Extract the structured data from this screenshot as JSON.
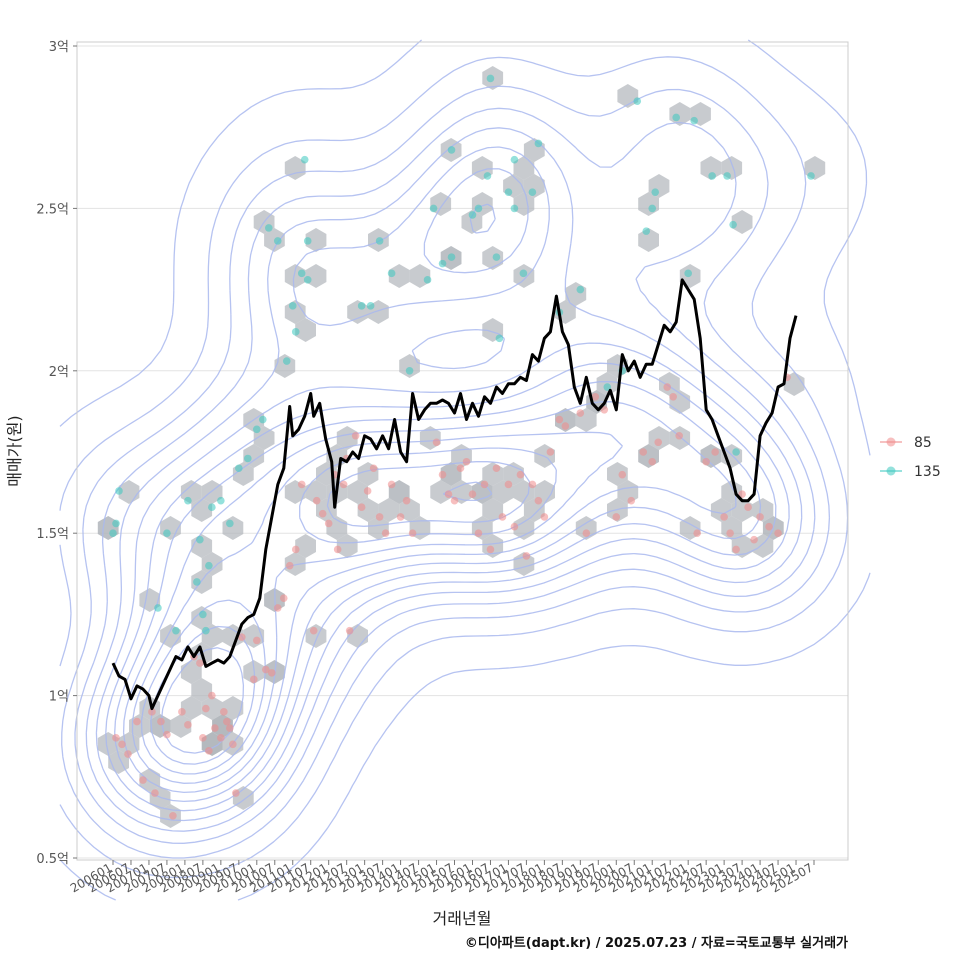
{
  "chart_data": {
    "type": "scatter",
    "xlabel": "거래년월",
    "ylabel": "매매가(원)",
    "caption": "©디아파트(dapt.kr) / 2025.07.23 / 자료=국토교통부 실거래가",
    "x_range": [
      "2006-01",
      "2025-07"
    ],
    "ylim": [
      0.5,
      3.0
    ],
    "y_unit": "억",
    "y_ticks": [
      {
        "value": 0.5,
        "label": "0.5억"
      },
      {
        "value": 1.0,
        "label": "1억"
      },
      {
        "value": 1.5,
        "label": "1.5억"
      },
      {
        "value": 2.0,
        "label": "2억"
      },
      {
        "value": 2.5,
        "label": "2.5억"
      },
      {
        "value": 3.0,
        "label": "3억"
      }
    ],
    "x_ticks": [
      "200601",
      "200607",
      "200701",
      "200707",
      "200801",
      "200807",
      "200901",
      "200907",
      "201001",
      "201007",
      "201101",
      "201107",
      "201201",
      "201207",
      "201301",
      "201307",
      "201401",
      "201407",
      "201501",
      "201507",
      "201601",
      "201607",
      "201701",
      "201707",
      "201801",
      "201807",
      "201901",
      "201907",
      "202001",
      "202007",
      "202101",
      "202107",
      "202201",
      "202207",
      "202301",
      "202307",
      "202401",
      "202407",
      "202501",
      "202507"
    ],
    "grid": true,
    "legend_position": "right",
    "colors": {
      "s85": "#f08a8a",
      "s135": "#3cc8c0",
      "trend": "#000000",
      "contour": "#a9b9ee",
      "hex": "#b0b5bb"
    },
    "series": [
      {
        "name": "85",
        "points": [
          [
            "2006-02",
            0.87
          ],
          [
            "2006-04",
            0.85
          ],
          [
            "2006-06",
            0.82
          ],
          [
            "2006-09",
            0.92
          ],
          [
            "2006-11",
            0.74
          ],
          [
            "2007-02",
            0.95
          ],
          [
            "2007-03",
            0.7
          ],
          [
            "2007-05",
            0.92
          ],
          [
            "2007-07",
            0.88
          ],
          [
            "2007-09",
            0.63
          ],
          [
            "2007-12",
            0.95
          ],
          [
            "2008-02",
            0.91
          ],
          [
            "2008-04",
            1.12
          ],
          [
            "2008-06",
            1.1
          ],
          [
            "2008-07",
            0.87
          ],
          [
            "2008-08",
            0.96
          ],
          [
            "2008-09",
            0.83
          ],
          [
            "2008-10",
            1.0
          ],
          [
            "2008-11",
            0.9
          ],
          [
            "2009-01",
            0.87
          ],
          [
            "2009-02",
            0.95
          ],
          [
            "2009-03",
            0.92
          ],
          [
            "2009-04",
            0.9
          ],
          [
            "2009-05",
            0.85
          ],
          [
            "2009-06",
            0.7
          ],
          [
            "2009-08",
            1.18
          ],
          [
            "2009-12",
            1.05
          ],
          [
            "2010-01",
            1.17
          ],
          [
            "2010-04",
            1.08
          ],
          [
            "2010-06",
            1.07
          ],
          [
            "2010-08",
            1.27
          ],
          [
            "2010-10",
            1.3
          ],
          [
            "2010-12",
            1.4
          ],
          [
            "2011-02",
            1.45
          ],
          [
            "2011-04",
            1.65
          ],
          [
            "2011-08",
            1.2
          ],
          [
            "2011-09",
            1.6
          ],
          [
            "2011-11",
            1.56
          ],
          [
            "2012-01",
            1.53
          ],
          [
            "2012-03",
            1.68
          ],
          [
            "2012-04",
            1.45
          ],
          [
            "2012-06",
            1.65
          ],
          [
            "2012-07",
            1.73
          ],
          [
            "2012-08",
            1.2
          ],
          [
            "2012-10",
            1.8
          ],
          [
            "2012-12",
            1.58
          ],
          [
            "2013-02",
            1.63
          ],
          [
            "2013-04",
            1.7
          ],
          [
            "2013-06",
            1.55
          ],
          [
            "2013-08",
            1.5
          ],
          [
            "2013-10",
            1.65
          ],
          [
            "2014-01",
            1.55
          ],
          [
            "2014-03",
            1.6
          ],
          [
            "2014-05",
            1.5
          ],
          [
            "2015-01",
            1.78
          ],
          [
            "2015-03",
            1.68
          ],
          [
            "2015-05",
            1.62
          ],
          [
            "2015-07",
            1.6
          ],
          [
            "2015-09",
            1.7
          ],
          [
            "2015-11",
            1.72
          ],
          [
            "2016-01",
            1.62
          ],
          [
            "2016-03",
            1.5
          ],
          [
            "2016-05",
            1.65
          ],
          [
            "2016-07",
            1.45
          ],
          [
            "2016-09",
            1.7
          ],
          [
            "2016-11",
            1.55
          ],
          [
            "2017-01",
            1.65
          ],
          [
            "2017-03",
            1.52
          ],
          [
            "2017-05",
            1.68
          ],
          [
            "2017-07",
            1.43
          ],
          [
            "2017-09",
            1.65
          ],
          [
            "2017-11",
            1.6
          ],
          [
            "2018-01",
            1.55
          ],
          [
            "2018-03",
            1.75
          ],
          [
            "2018-06",
            1.85
          ],
          [
            "2018-08",
            1.83
          ],
          [
            "2019-01",
            1.87
          ],
          [
            "2019-03",
            1.5
          ],
          [
            "2019-06",
            1.92
          ],
          [
            "2019-09",
            1.88
          ],
          [
            "2020-01",
            1.55
          ],
          [
            "2020-03",
            1.68
          ],
          [
            "2020-06",
            1.6
          ],
          [
            "2020-10",
            1.75
          ],
          [
            "2021-01",
            1.72
          ],
          [
            "2021-03",
            1.78
          ],
          [
            "2021-06",
            1.95
          ],
          [
            "2021-08",
            1.92
          ],
          [
            "2021-10",
            1.8
          ],
          [
            "2022-04",
            1.5
          ],
          [
            "2022-07",
            1.72
          ],
          [
            "2022-10",
            1.75
          ],
          [
            "2023-01",
            1.55
          ],
          [
            "2023-03",
            1.5
          ],
          [
            "2023-05",
            1.45
          ],
          [
            "2023-07",
            1.62
          ],
          [
            "2023-09",
            1.58
          ],
          [
            "2023-11",
            1.48
          ],
          [
            "2024-01",
            1.55
          ],
          [
            "2024-04",
            1.52
          ],
          [
            "2024-07",
            1.5
          ],
          [
            "2024-10",
            1.98
          ]
        ]
      },
      {
        "name": "135",
        "points": [
          [
            "2006-01",
            1.5
          ],
          [
            "2006-02",
            1.53
          ],
          [
            "2006-03",
            1.63
          ],
          [
            "2007-04",
            1.27
          ],
          [
            "2007-07",
            1.5
          ],
          [
            "2007-10",
            1.2
          ],
          [
            "2008-02",
            1.6
          ],
          [
            "2008-05",
            1.35
          ],
          [
            "2008-06",
            1.48
          ],
          [
            "2008-07",
            1.25
          ],
          [
            "2008-08",
            1.2
          ],
          [
            "2008-09",
            1.4
          ],
          [
            "2008-10",
            1.58
          ],
          [
            "2009-01",
            1.6
          ],
          [
            "2009-04",
            1.53
          ],
          [
            "2009-07",
            1.7
          ],
          [
            "2009-10",
            1.73
          ],
          [
            "2010-01",
            1.82
          ],
          [
            "2010-03",
            1.85
          ],
          [
            "2010-05",
            2.44
          ],
          [
            "2010-08",
            2.4
          ],
          [
            "2010-11",
            2.03
          ],
          [
            "2011-01",
            2.2
          ],
          [
            "2011-02",
            2.12
          ],
          [
            "2011-04",
            2.3
          ],
          [
            "2011-05",
            2.65
          ],
          [
            "2011-06",
            2.4
          ],
          [
            "2011-06",
            2.28
          ],
          [
            "2012-12",
            2.2
          ],
          [
            "2013-03",
            2.2
          ],
          [
            "2013-06",
            2.4
          ],
          [
            "2013-10",
            2.3
          ],
          [
            "2014-04",
            2.0
          ],
          [
            "2014-10",
            2.28
          ],
          [
            "2014-12",
            2.5
          ],
          [
            "2015-03",
            2.33
          ],
          [
            "2015-06",
            2.35
          ],
          [
            "2015-06",
            2.68
          ],
          [
            "2016-01",
            2.48
          ],
          [
            "2016-03",
            2.5
          ],
          [
            "2016-06",
            2.6
          ],
          [
            "2016-07",
            2.9
          ],
          [
            "2016-09",
            2.35
          ],
          [
            "2016-10",
            2.1
          ],
          [
            "2017-01",
            2.55
          ],
          [
            "2017-03",
            2.5
          ],
          [
            "2017-03",
            2.65
          ],
          [
            "2017-06",
            2.3
          ],
          [
            "2017-09",
            2.55
          ],
          [
            "2017-11",
            2.7
          ],
          [
            "2018-06",
            2.18
          ],
          [
            "2019-01",
            2.25
          ],
          [
            "2019-10",
            1.95
          ],
          [
            "2020-03",
            2.0
          ],
          [
            "2020-08",
            2.83
          ],
          [
            "2020-11",
            2.43
          ],
          [
            "2021-01",
            2.5
          ],
          [
            "2021-02",
            2.55
          ],
          [
            "2021-09",
            2.78
          ],
          [
            "2022-01",
            2.3
          ],
          [
            "2022-03",
            2.77
          ],
          [
            "2022-09",
            2.6
          ],
          [
            "2023-02",
            2.6
          ],
          [
            "2023-04",
            2.45
          ],
          [
            "2023-05",
            1.75
          ],
          [
            "2025-06",
            2.6
          ]
        ]
      }
    ],
    "trend_line": [
      [
        "2006-01",
        1.1
      ],
      [
        "2006-03",
        1.06
      ],
      [
        "2006-05",
        1.05
      ],
      [
        "2006-07",
        0.99
      ],
      [
        "2006-09",
        1.03
      ],
      [
        "2006-11",
        1.02
      ],
      [
        "2007-01",
        1.0
      ],
      [
        "2007-02",
        0.96
      ],
      [
        "2007-04",
        1.0
      ],
      [
        "2007-06",
        1.04
      ],
      [
        "2007-08",
        1.08
      ],
      [
        "2007-10",
        1.12
      ],
      [
        "2007-12",
        1.11
      ],
      [
        "2008-02",
        1.15
      ],
      [
        "2008-04",
        1.12
      ],
      [
        "2008-06",
        1.15
      ],
      [
        "2008-08",
        1.09
      ],
      [
        "2008-10",
        1.1
      ],
      [
        "2008-12",
        1.11
      ],
      [
        "2009-02",
        1.1
      ],
      [
        "2009-04",
        1.12
      ],
      [
        "2009-06",
        1.17
      ],
      [
        "2009-08",
        1.22
      ],
      [
        "2009-10",
        1.24
      ],
      [
        "2009-12",
        1.25
      ],
      [
        "2010-02",
        1.3
      ],
      [
        "2010-04",
        1.45
      ],
      [
        "2010-06",
        1.55
      ],
      [
        "2010-08",
        1.65
      ],
      [
        "2010-10",
        1.7
      ],
      [
        "2010-12",
        1.89
      ],
      [
        "2011-01",
        1.8
      ],
      [
        "2011-03",
        1.82
      ],
      [
        "2011-05",
        1.86
      ],
      [
        "2011-07",
        1.93
      ],
      [
        "2011-08",
        1.86
      ],
      [
        "2011-10",
        1.9
      ],
      [
        "2011-12",
        1.79
      ],
      [
        "2012-02",
        1.72
      ],
      [
        "2012-03",
        1.58
      ],
      [
        "2012-05",
        1.73
      ],
      [
        "2012-07",
        1.72
      ],
      [
        "2012-09",
        1.75
      ],
      [
        "2012-11",
        1.73
      ],
      [
        "2013-01",
        1.8
      ],
      [
        "2013-03",
        1.79
      ],
      [
        "2013-05",
        1.76
      ],
      [
        "2013-07",
        1.8
      ],
      [
        "2013-09",
        1.76
      ],
      [
        "2013-11",
        1.85
      ],
      [
        "2014-01",
        1.75
      ],
      [
        "2014-03",
        1.72
      ],
      [
        "2014-05",
        1.93
      ],
      [
        "2014-07",
        1.85
      ],
      [
        "2014-09",
        1.88
      ],
      [
        "2014-11",
        1.9
      ],
      [
        "2015-01",
        1.9
      ],
      [
        "2015-03",
        1.91
      ],
      [
        "2015-05",
        1.9
      ],
      [
        "2015-07",
        1.87
      ],
      [
        "2015-09",
        1.93
      ],
      [
        "2015-11",
        1.85
      ],
      [
        "2016-01",
        1.9
      ],
      [
        "2016-03",
        1.86
      ],
      [
        "2016-05",
        1.92
      ],
      [
        "2016-07",
        1.9
      ],
      [
        "2016-09",
        1.95
      ],
      [
        "2016-11",
        1.93
      ],
      [
        "2017-01",
        1.96
      ],
      [
        "2017-03",
        1.96
      ],
      [
        "2017-05",
        1.98
      ],
      [
        "2017-07",
        1.97
      ],
      [
        "2017-09",
        2.05
      ],
      [
        "2017-11",
        2.03
      ],
      [
        "2018-01",
        2.1
      ],
      [
        "2018-03",
        2.12
      ],
      [
        "2018-05",
        2.23
      ],
      [
        "2018-07",
        2.12
      ],
      [
        "2018-09",
        2.08
      ],
      [
        "2018-11",
        1.95
      ],
      [
        "2019-01",
        1.9
      ],
      [
        "2019-03",
        1.98
      ],
      [
        "2019-05",
        1.9
      ],
      [
        "2019-07",
        1.88
      ],
      [
        "2019-09",
        1.9
      ],
      [
        "2019-11",
        1.94
      ],
      [
        "2020-01",
        1.88
      ],
      [
        "2020-03",
        2.05
      ],
      [
        "2020-05",
        2.0
      ],
      [
        "2020-07",
        2.03
      ],
      [
        "2020-09",
        1.98
      ],
      [
        "2020-11",
        2.02
      ],
      [
        "2021-01",
        2.02
      ],
      [
        "2021-03",
        2.08
      ],
      [
        "2021-05",
        2.14
      ],
      [
        "2021-07",
        2.12
      ],
      [
        "2021-09",
        2.15
      ],
      [
        "2021-11",
        2.28
      ],
      [
        "2022-01",
        2.25
      ],
      [
        "2022-03",
        2.22
      ],
      [
        "2022-05",
        2.1
      ],
      [
        "2022-07",
        1.88
      ],
      [
        "2022-09",
        1.85
      ],
      [
        "2022-11",
        1.8
      ],
      [
        "2023-01",
        1.75
      ],
      [
        "2023-03",
        1.7
      ],
      [
        "2023-05",
        1.62
      ],
      [
        "2023-07",
        1.6
      ],
      [
        "2023-09",
        1.6
      ],
      [
        "2023-11",
        1.62
      ],
      [
        "2024-01",
        1.8
      ],
      [
        "2024-03",
        1.84
      ],
      [
        "2024-05",
        1.87
      ],
      [
        "2024-07",
        1.95
      ],
      [
        "2024-09",
        1.96
      ],
      [
        "2024-11",
        2.1
      ],
      [
        "2025-01",
        2.17
      ]
    ]
  }
}
